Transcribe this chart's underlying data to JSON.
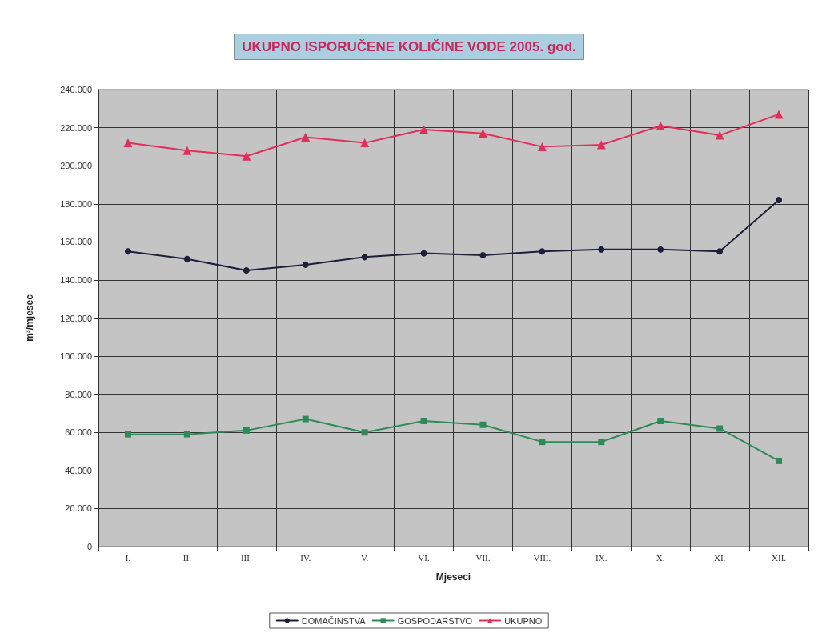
{
  "chart_data": {
    "type": "line",
    "title": "UKUPNO ISPORUČENE KOLIČINE VODE 2005. god.",
    "xlabel": "Mjeseci",
    "ylabel": "m³/mjesec",
    "categories": [
      "I.",
      "II.",
      "III.",
      "IV.",
      "V.",
      "VI.",
      "VII.",
      "VIII.",
      "IX.",
      "X.",
      "XI.",
      "XII."
    ],
    "series": [
      {
        "name": "DOMAČINSTVA",
        "color": "#1c1f3a",
        "marker": "circle",
        "values": [
          155000,
          151000,
          145000,
          148000,
          152000,
          154000,
          153000,
          155000,
          156000,
          156000,
          155000,
          182000
        ]
      },
      {
        "name": "GOSPODARSTVO",
        "color": "#2e8b57",
        "marker": "square",
        "values": [
          59000,
          59000,
          61000,
          67000,
          60000,
          66000,
          64000,
          55000,
          55000,
          66000,
          62000,
          45000
        ]
      },
      {
        "name": "UKUPNO",
        "color": "#e0305a",
        "marker": "triangle",
        "values": [
          212000,
          208000,
          205000,
          215000,
          212000,
          219000,
          217000,
          210000,
          211000,
          221000,
          216000,
          227000
        ]
      }
    ],
    "ylim": [
      0,
      240000
    ],
    "yticks": [
      {
        "value": 0,
        "label": "0"
      },
      {
        "value": 20000,
        "label": "20.000"
      },
      {
        "value": 40000,
        "label": "40.000"
      },
      {
        "value": 60000,
        "label": "60.000"
      },
      {
        "value": 80000,
        "label": "80.000"
      },
      {
        "value": 100000,
        "label": "100.000"
      },
      {
        "value": 120000,
        "label": "120.000"
      },
      {
        "value": 140000,
        "label": "140.000"
      },
      {
        "value": 160000,
        "label": "160.000"
      },
      {
        "value": 180000,
        "label": "180.000"
      },
      {
        "value": 200000,
        "label": "200.000"
      },
      {
        "value": 220000,
        "label": "220.000"
      },
      {
        "value": 240000,
        "label": "240.000"
      }
    ],
    "grid": true,
    "legend": "bottom",
    "line_style": "solid"
  }
}
